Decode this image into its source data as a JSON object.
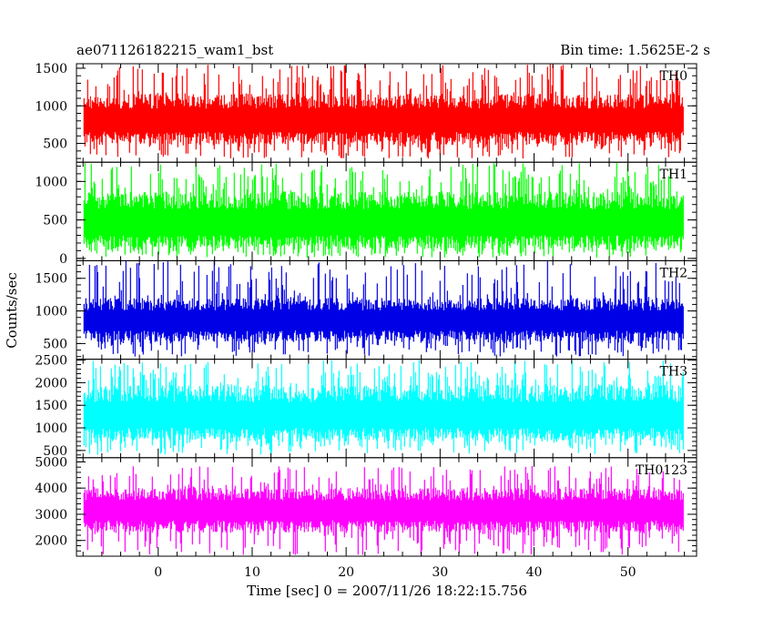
{
  "chart_data": {
    "type": "line",
    "title_left": "ae071126182215_wam1_bst",
    "title_right": "Bin time: 1.5625E-2 s",
    "xlabel": "Time [sec] 0 = 2007/11/26 18:22:15.756",
    "ylabel": "Counts/sec",
    "xlim": [
      -8.7,
      57.3
    ],
    "x_data_range": [
      -7.9,
      55.9
    ],
    "x_ticks": [
      0,
      10,
      20,
      30,
      40,
      50
    ],
    "x_minor_step": 2,
    "grid": false,
    "panels": [
      {
        "name": "TH0",
        "color": "#ff0000",
        "ylim": [
          250,
          1560
        ],
        "y_ticks": [
          500,
          1000,
          1500
        ],
        "y_minor_step": 100,
        "y_center": 800,
        "y_low_band": 480,
        "y_high_band": 1160,
        "y_min": 300,
        "y_max": 1560
      },
      {
        "name": "TH1",
        "color": "#00ff00",
        "ylim": [
          -30,
          1250
        ],
        "y_ticks": [
          0,
          500,
          1000
        ],
        "y_minor_step": 100,
        "y_center": 450,
        "y_low_band": 120,
        "y_high_band": 870,
        "y_min": 10,
        "y_max": 1240
      },
      {
        "name": "TH2",
        "color": "#0000e6",
        "ylim": [
          260,
          1770
        ],
        "y_ticks": [
          500,
          1000,
          1500
        ],
        "y_minor_step": 100,
        "y_center": 850,
        "y_low_band": 520,
        "y_high_band": 1200,
        "y_min": 300,
        "y_max": 1770
      },
      {
        "name": "TH3",
        "color": "#00ffff",
        "ylim": [
          340,
          2520
        ],
        "y_ticks": [
          500,
          1000,
          1500,
          2000,
          2500
        ],
        "y_minor_step": 100,
        "y_center": 1250,
        "y_low_band": 700,
        "y_high_band": 1950,
        "y_min": 400,
        "y_max": 2500
      },
      {
        "name": "TH0123",
        "color": "#ff00ff",
        "ylim": [
          1400,
          5160
        ],
        "y_ticks": [
          2000,
          3000,
          4000,
          5000
        ],
        "y_minor_step": 200,
        "y_center": 3150,
        "y_low_band": 2300,
        "y_high_band": 4000,
        "y_min": 1450,
        "y_max": 4850
      }
    ]
  }
}
